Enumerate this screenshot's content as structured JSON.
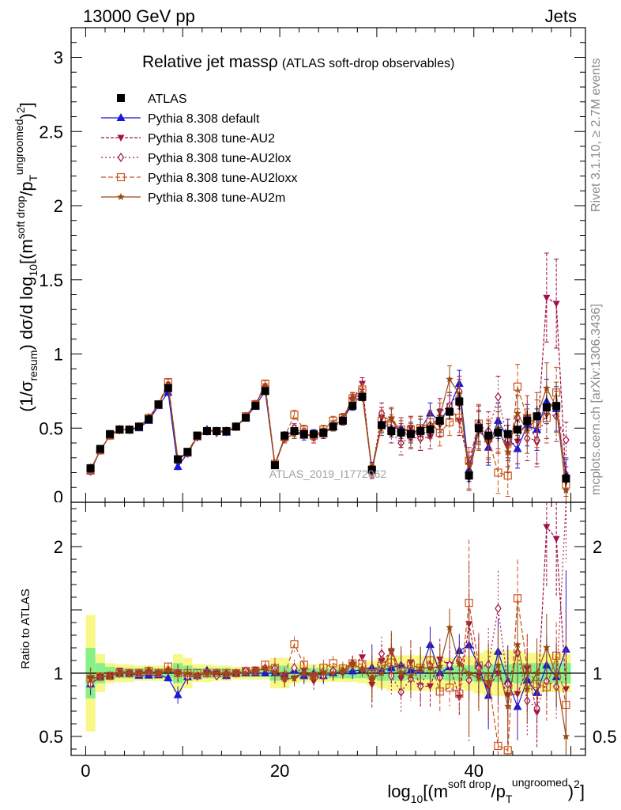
{
  "header": {
    "left": "13000 GeV pp",
    "right": "Jets"
  },
  "side_labels": {
    "rivet": "Rivet 3.1.10, ≥ 2.7M events",
    "mcplots": "mcplots.cern.ch [arXiv:1306.3436]"
  },
  "colors": {
    "atlas": "#000000",
    "default": "#1a1ad6",
    "au2": "#a0104a",
    "au2lox": "#a0104a",
    "au2loxx": "#c8541a",
    "au2m": "#9a4a10",
    "band_inner": "#88f088",
    "band_outer": "#f8f888",
    "watermark": "#a0a0a0"
  },
  "chart_data": {
    "type": "line",
    "title_main": "Relative jet mass",
    "title_rho": "ρ",
    "title_sub": "(ATLAS soft-drop observables)",
    "watermark": "ATLAS_2019_I1772062",
    "ylabel_main": "(1/σresum) dσ/d log10[(m soft drop/pT ungroomed)2]",
    "ylabel_ratio": "Ratio to ATLAS",
    "xlabel": "log10[(m soft drop/pT ungroomed)2]",
    "xlim": [
      -1.5,
      51.5
    ],
    "ylim": [
      0,
      3.2
    ],
    "ylim_ratio": [
      0.35,
      2.35
    ],
    "x_ticks": [
      0,
      20,
      40
    ],
    "y_ticks": [
      "",
      0.5,
      1,
      1.5,
      2,
      2.5,
      3
    ],
    "y_ticks_ratio": [
      0.5,
      1,
      2
    ],
    "legend_position": "top-left",
    "x": [
      0.5,
      1.5,
      2.5,
      3.5,
      4.5,
      5.5,
      6.5,
      7.5,
      8.5,
      9.5,
      10.5,
      11.5,
      12.5,
      13.5,
      14.5,
      15.5,
      16.5,
      17.5,
      18.5,
      19.5,
      20.5,
      21.5,
      22.5,
      23.5,
      24.5,
      25.5,
      26.5,
      27.5,
      28.5,
      29.5,
      30.5,
      31.5,
      32.5,
      33.5,
      34.5,
      35.5,
      36.5,
      37.5,
      38.5,
      39.5,
      40.5,
      41.5,
      42.5,
      43.5,
      44.5,
      45.5,
      46.5,
      47.5,
      48.5,
      49.5
    ],
    "data": {
      "name": "ATLAS",
      "values": [
        0.23,
        0.36,
        0.46,
        0.49,
        0.49,
        0.51,
        0.56,
        0.66,
        0.77,
        0.29,
        0.34,
        0.45,
        0.48,
        0.48,
        0.48,
        0.51,
        0.57,
        0.65,
        0.75,
        0.25,
        0.45,
        0.48,
        0.46,
        0.46,
        0.47,
        0.51,
        0.55,
        0.65,
        0.71,
        0.22,
        0.52,
        0.48,
        0.47,
        0.46,
        0.48,
        0.49,
        0.55,
        0.61,
        0.68,
        0.18,
        0.5,
        0.45,
        0.47,
        0.46,
        0.49,
        0.55,
        0.58,
        0.64,
        0.65,
        0.16
      ],
      "stat_err": [
        0.03,
        0.015,
        0.01,
        0.01,
        0.01,
        0.01,
        0.01,
        0.015,
        0.02,
        0.02,
        0.02,
        0.01,
        0.01,
        0.01,
        0.01,
        0.01,
        0.01,
        0.015,
        0.02,
        0.02,
        0.03,
        0.02,
        0.02,
        0.02,
        0.02,
        0.02,
        0.02,
        0.025,
        0.03,
        0.03,
        0.04,
        0.04,
        0.04,
        0.04,
        0.04,
        0.05,
        0.05,
        0.05,
        0.06,
        0.05,
        0.06,
        0.06,
        0.06,
        0.06,
        0.07,
        0.07,
        0.07,
        0.08,
        0.08,
        0.05
      ],
      "ratio_band_inner": [
        0.2,
        0.08,
        0.05,
        0.04,
        0.04,
        0.04,
        0.04,
        0.04,
        0.04,
        0.08,
        0.06,
        0.04,
        0.04,
        0.04,
        0.04,
        0.03,
        0.03,
        0.03,
        0.03,
        0.06,
        0.06,
        0.04,
        0.04,
        0.04,
        0.04,
        0.04,
        0.04,
        0.04,
        0.04,
        0.05,
        0.06,
        0.06,
        0.06,
        0.05,
        0.05,
        0.05,
        0.05,
        0.06,
        0.06,
        0.06,
        0.07,
        0.07,
        0.07,
        0.07,
        0.08,
        0.08,
        0.08,
        0.08,
        0.08,
        0.08
      ],
      "ratio_band_outer": [
        0.46,
        0.15,
        0.08,
        0.07,
        0.07,
        0.06,
        0.06,
        0.06,
        0.06,
        0.15,
        0.12,
        0.07,
        0.07,
        0.06,
        0.06,
        0.05,
        0.05,
        0.05,
        0.05,
        0.12,
        0.12,
        0.08,
        0.07,
        0.07,
        0.07,
        0.07,
        0.07,
        0.07,
        0.08,
        0.1,
        0.12,
        0.14,
        0.14,
        0.14,
        0.14,
        0.14,
        0.13,
        0.12,
        0.12,
        0.14,
        0.16,
        0.18,
        0.18,
        0.18,
        0.18,
        0.16,
        0.16,
        0.15,
        0.15,
        0.15
      ]
    },
    "series": [
      {
        "name": "Pythia 8.308 default",
        "color": "#1a1ad6",
        "marker": "triangle-up",
        "dash": "",
        "values": [
          0.21,
          0.35,
          0.45,
          0.49,
          0.49,
          0.5,
          0.55,
          0.65,
          0.74,
          0.24,
          0.33,
          0.44,
          0.49,
          0.48,
          0.47,
          0.51,
          0.57,
          0.65,
          0.75,
          0.25,
          0.44,
          0.49,
          0.45,
          0.46,
          0.46,
          0.51,
          0.56,
          0.66,
          0.73,
          0.23,
          0.53,
          0.5,
          0.5,
          0.47,
          0.49,
          0.6,
          0.55,
          0.64,
          0.8,
          0.22,
          0.53,
          0.37,
          0.55,
          0.43,
          0.36,
          0.52,
          0.49,
          0.68,
          0.63,
          0.19
        ],
        "err": [
          0.02,
          0.01,
          0.01,
          0.01,
          0.01,
          0.01,
          0.01,
          0.015,
          0.02,
          0.02,
          0.02,
          0.01,
          0.01,
          0.01,
          0.01,
          0.01,
          0.01,
          0.015,
          0.02,
          0.02,
          0.03,
          0.03,
          0.03,
          0.03,
          0.03,
          0.03,
          0.03,
          0.04,
          0.04,
          0.04,
          0.06,
          0.06,
          0.07,
          0.07,
          0.07,
          0.07,
          0.08,
          0.08,
          0.09,
          0.08,
          0.12,
          0.12,
          0.12,
          0.13,
          0.13,
          0.14,
          0.14,
          0.15,
          0.15,
          0.1
        ]
      },
      {
        "name": "Pythia 8.308 tune-AU2",
        "color": "#a0104a",
        "marker": "triangle-down",
        "dash": "4,2",
        "values": [
          0.22,
          0.35,
          0.45,
          0.5,
          0.49,
          0.51,
          0.56,
          0.66,
          0.78,
          0.29,
          0.33,
          0.44,
          0.48,
          0.48,
          0.47,
          0.51,
          0.58,
          0.67,
          0.77,
          0.25,
          0.43,
          0.46,
          0.47,
          0.43,
          0.47,
          0.51,
          0.55,
          0.69,
          0.8,
          0.2,
          0.57,
          0.56,
          0.45,
          0.5,
          0.43,
          0.44,
          0.61,
          0.65,
          0.55,
          0.25,
          0.49,
          0.4,
          0.47,
          0.38,
          0.41,
          0.57,
          0.4,
          1.38,
          1.34,
          0.14
        ],
        "err": [
          0.02,
          0.01,
          0.01,
          0.01,
          0.01,
          0.01,
          0.01,
          0.015,
          0.02,
          0.02,
          0.02,
          0.01,
          0.01,
          0.01,
          0.01,
          0.01,
          0.01,
          0.015,
          0.02,
          0.02,
          0.03,
          0.03,
          0.03,
          0.03,
          0.03,
          0.03,
          0.03,
          0.04,
          0.04,
          0.04,
          0.07,
          0.07,
          0.08,
          0.08,
          0.08,
          0.08,
          0.09,
          0.09,
          0.1,
          0.09,
          0.13,
          0.13,
          0.14,
          0.14,
          0.15,
          0.15,
          0.16,
          0.3,
          0.3,
          0.1
        ]
      },
      {
        "name": "Pythia 8.308 tune-AU2lox",
        "color": "#a0104a",
        "marker": "diamond-open",
        "dash": "2,3",
        "values": [
          0.21,
          0.35,
          0.45,
          0.49,
          0.49,
          0.51,
          0.57,
          0.66,
          0.79,
          0.29,
          0.33,
          0.44,
          0.48,
          0.47,
          0.48,
          0.51,
          0.58,
          0.66,
          0.78,
          0.26,
          0.43,
          0.5,
          0.46,
          0.45,
          0.46,
          0.52,
          0.56,
          0.7,
          0.73,
          0.21,
          0.6,
          0.47,
          0.4,
          0.44,
          0.43,
          0.52,
          0.53,
          0.65,
          0.75,
          0.17,
          0.52,
          0.48,
          0.71,
          0.42,
          0.57,
          0.43,
          0.42,
          0.6,
          0.58,
          0.42
        ],
        "err": [
          0.02,
          0.01,
          0.01,
          0.01,
          0.01,
          0.01,
          0.01,
          0.015,
          0.02,
          0.02,
          0.02,
          0.01,
          0.01,
          0.01,
          0.01,
          0.01,
          0.01,
          0.015,
          0.02,
          0.02,
          0.03,
          0.03,
          0.03,
          0.03,
          0.03,
          0.03,
          0.03,
          0.04,
          0.04,
          0.04,
          0.07,
          0.07,
          0.08,
          0.08,
          0.08,
          0.08,
          0.09,
          0.09,
          0.1,
          0.09,
          0.13,
          0.13,
          0.14,
          0.14,
          0.15,
          0.15,
          0.16,
          0.17,
          0.17,
          0.12
        ]
      },
      {
        "name": "Pythia 8.308 tune-AU2loxx",
        "color": "#c8541a",
        "marker": "square-open",
        "dash": "6,3",
        "values": [
          0.22,
          0.35,
          0.45,
          0.49,
          0.49,
          0.51,
          0.57,
          0.66,
          0.81,
          0.29,
          0.34,
          0.45,
          0.48,
          0.48,
          0.48,
          0.51,
          0.58,
          0.66,
          0.8,
          0.26,
          0.44,
          0.59,
          0.49,
          0.45,
          0.49,
          0.55,
          0.57,
          0.7,
          0.76,
          0.22,
          0.55,
          0.52,
          0.49,
          0.49,
          0.5,
          0.54,
          0.47,
          0.54,
          0.57,
          0.28,
          0.53,
          0.43,
          0.2,
          0.18,
          0.78,
          0.57,
          0.53,
          0.57,
          0.74,
          0.12
        ],
        "err": [
          0.02,
          0.01,
          0.01,
          0.01,
          0.01,
          0.01,
          0.01,
          0.015,
          0.02,
          0.02,
          0.02,
          0.01,
          0.01,
          0.01,
          0.01,
          0.01,
          0.01,
          0.015,
          0.02,
          0.02,
          0.03,
          0.03,
          0.03,
          0.03,
          0.03,
          0.03,
          0.03,
          0.04,
          0.04,
          0.04,
          0.07,
          0.07,
          0.08,
          0.08,
          0.08,
          0.08,
          0.09,
          0.09,
          0.1,
          0.09,
          0.13,
          0.13,
          0.14,
          0.14,
          0.15,
          0.15,
          0.16,
          0.17,
          0.17,
          0.08
        ]
      },
      {
        "name": "Pythia 8.308 tune-AU2m",
        "color": "#9a4a10",
        "marker": "star",
        "dash": "",
        "values": [
          0.22,
          0.35,
          0.45,
          0.49,
          0.49,
          0.51,
          0.57,
          0.66,
          0.79,
          0.29,
          0.34,
          0.44,
          0.48,
          0.48,
          0.48,
          0.51,
          0.57,
          0.66,
          0.78,
          0.25,
          0.43,
          0.46,
          0.46,
          0.45,
          0.47,
          0.51,
          0.56,
          0.7,
          0.73,
          0.21,
          0.52,
          0.57,
          0.47,
          0.45,
          0.5,
          0.51,
          0.58,
          0.83,
          0.73,
          0.18,
          0.48,
          0.42,
          0.5,
          0.34,
          0.6,
          0.48,
          0.58,
          0.77,
          0.64,
          0.08
        ],
        "err": [
          0.02,
          0.01,
          0.01,
          0.01,
          0.01,
          0.01,
          0.01,
          0.015,
          0.02,
          0.02,
          0.02,
          0.01,
          0.01,
          0.01,
          0.01,
          0.01,
          0.01,
          0.015,
          0.02,
          0.02,
          0.03,
          0.03,
          0.03,
          0.03,
          0.03,
          0.03,
          0.03,
          0.04,
          0.04,
          0.04,
          0.07,
          0.07,
          0.08,
          0.08,
          0.08,
          0.08,
          0.09,
          0.09,
          0.1,
          0.09,
          0.13,
          0.13,
          0.14,
          0.14,
          0.15,
          0.15,
          0.16,
          0.17,
          0.17,
          0.08
        ]
      }
    ]
  }
}
